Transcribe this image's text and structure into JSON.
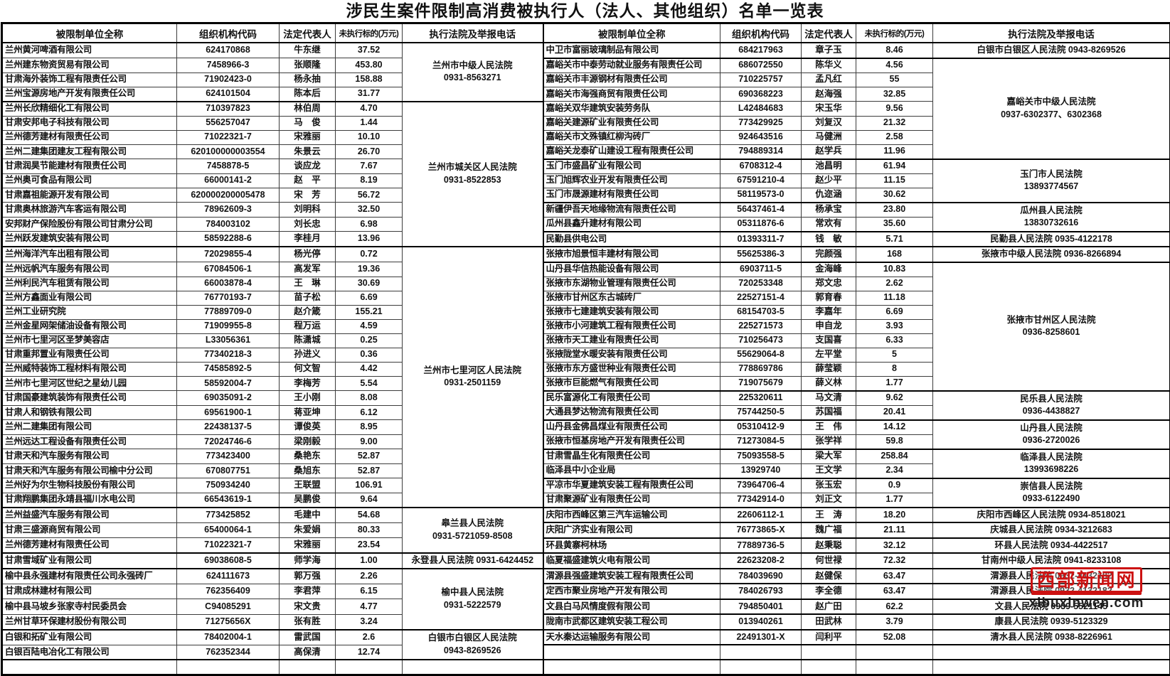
{
  "title": "涉民生案件限制高消费被执行人（法人、其他组织）名单一览表",
  "columns": [
    "被限制单位全称",
    "组织机构代码",
    "法定代表人",
    "未执行标的(万元)",
    "执行法院及举报电话"
  ],
  "watermark": {
    "name": "西部新闻网",
    "url": "xibuxinwen.com"
  },
  "left": {
    "rows": [
      [
        "兰州黄河啤酒有限公司",
        "624170868",
        "牛东继",
        "37.52"
      ],
      [
        "兰州建东物资贸易有限公司",
        "7458966-3",
        "张顺隆",
        "453.80"
      ],
      [
        "甘肃海外装饰工程有限责任公司",
        "71902423-0",
        "杨永抽",
        "158.88"
      ],
      [
        "兰州宝源房地产开发有限责任公司",
        "624101504",
        "陈本后",
        "31.77"
      ],
      [
        "兰州长欣精细化工有限公司",
        "710397823",
        "林伯周",
        "4.70"
      ],
      [
        "甘肃安邦电子科技有限公司",
        "556257047",
        "马　俊",
        "1.44"
      ],
      [
        "兰州德芳建材有限责任公司",
        "71022321-7",
        "宋雅丽",
        "10.10"
      ],
      [
        "兰州二建集团建友工程有限公司",
        "620100000003554",
        "朱景云",
        "26.70"
      ],
      [
        "甘肃润昊节能建材有限责任公司",
        "7458878-5",
        "谈应龙",
        "7.67"
      ],
      [
        "兰州奥可食品有限公司",
        "66000141-2",
        "赵　平",
        "8.19"
      ],
      [
        "甘肃嘉祖能源开发有限公司",
        "620000200005478",
        "宋　芳",
        "56.72"
      ],
      [
        "甘肃奥林旅游汽车客运有限公司",
        "78962609-3",
        "刘明科",
        "32.50"
      ],
      [
        "安邦财产保险股份有限公司甘肃分公司",
        "784003102",
        "刘长忠",
        "6.98"
      ],
      [
        "兰州跃发建筑安装有限公司",
        "58592288-6",
        "李桂月",
        "13.96"
      ],
      [
        "兰州海洋汽车出租有限公司",
        "72029855-4",
        "杨光停",
        "0.72"
      ],
      [
        "兰州远帆汽车服务有限公司",
        "67084506-1",
        "高发军",
        "19.36"
      ],
      [
        "兰州利民汽车租赁有限公司",
        "66003878-4",
        "王　琳",
        "30.69"
      ],
      [
        "兰州方鑫面业有限公司",
        "76770193-7",
        "苗子松",
        "6.69"
      ],
      [
        "兰州工业研究院",
        "77889709-0",
        "赵介箴",
        "155.21"
      ],
      [
        "兰州金星网架储油设备有限公司",
        "71909955-8",
        "程万运",
        "4.59"
      ],
      [
        "兰州市七里河区圣梦美容店",
        "L33056361",
        "陈潇城",
        "0.25"
      ],
      [
        "甘肃重邦置业有限责任公司",
        "77340218-3",
        "孙进义",
        "0.36"
      ],
      [
        "兰州威特装饰工程材料有限公司",
        "74585892-5",
        "何文智",
        "4.42"
      ],
      [
        "兰州市七里河区世纪之星幼儿园",
        "58592004-7",
        "李梅芳",
        "5.54"
      ],
      [
        "甘肃国豪建筑装饰有限责任公司",
        "69035091-2",
        "王小刚",
        "8.08"
      ],
      [
        "甘肃人和钢铁有限公司",
        "69561900-1",
        "蒋亚坤",
        "6.12"
      ],
      [
        "兰州二建集团有限公司",
        "22438137-5",
        "谭俊英",
        "8.95"
      ],
      [
        "兰州远达工程设备有限责任公司",
        "72024746-6",
        "梁刚毅",
        "9.00"
      ],
      [
        "甘肃天和汽车服务有限公司",
        "773423400",
        "桑艳东",
        "52.87"
      ],
      [
        "甘肃天和汽车服务有限公司榆中分公司",
        "670807751",
        "桑旭东",
        "52.87"
      ],
      [
        "兰州好为尔生物科技股份有限公司",
        "750934240",
        "王联盟",
        "106.91"
      ],
      [
        "甘肃翔鹏集团永靖县福川水电公司",
        "66543619-1",
        "吴鹏俊",
        "9.64"
      ],
      [
        "兰州益盛汽车服务有限公司",
        "773425852",
        "毛建中",
        "54.68"
      ],
      [
        "甘肃三盛源商贸有限公司",
        "65400064-1",
        "朱爱娟",
        "80.33"
      ],
      [
        "兰州德芳建材有限责任公司",
        "71022321-7",
        "宋雅丽",
        "23.54"
      ],
      [
        "甘肃雪域矿业有限公司",
        "69038608-5",
        "师学海",
        "1.00"
      ],
      [
        "榆中县永强建材有限责任公司永强砖厂",
        "624111673",
        "郭万强",
        "2.26"
      ],
      [
        "甘肃成林建材有限公司",
        "762356409",
        "李君萍",
        "6.15"
      ],
      [
        "榆中县马坡乡张家寺村民委员会",
        "C94085291",
        "宋文贵",
        "4.77"
      ],
      [
        "兰州甘草环保建材股份有限公司",
        "71275656X",
        "张有胜",
        "3.24"
      ],
      [
        "白银和拓矿业有限公司",
        "78402004-1",
        "雷武国",
        "2.6"
      ],
      [
        "白银百陆电冶化工有限公司",
        "762352344",
        "高保清",
        "12.74"
      ],
      [
        "",
        "",
        "",
        ""
      ]
    ],
    "courts": [
      {
        "start": 0,
        "span": 4,
        "lines": [
          "兰州市中级人民法院",
          "0931-8563271"
        ]
      },
      {
        "start": 4,
        "span": 10,
        "lines": [
          "兰州市城关区人民法院",
          "0931-8522853"
        ]
      },
      {
        "start": 14,
        "span": 18,
        "lines": [
          "兰州市七里河区人民法院",
          "0931-2501159"
        ]
      },
      {
        "start": 32,
        "span": 3,
        "lines": [
          "皋兰县人民法院",
          "0931-5721059-8508"
        ]
      },
      {
        "start": 35,
        "span": 1,
        "lines": [
          "永登县人民法院 0931-6424452"
        ]
      },
      {
        "start": 36,
        "span": 4,
        "lines": [
          "榆中县人民法院",
          "0931-5222579"
        ]
      },
      {
        "start": 40,
        "span": 2,
        "lines": [
          "白银市白银区人民法院",
          "0943-8269526"
        ]
      },
      {
        "start": 42,
        "span": 1,
        "lines": [
          ""
        ]
      }
    ]
  },
  "right": {
    "rows": [
      [
        "中卫市富丽玻璃制品有限公司",
        "684217963",
        "章子玉",
        "8.46"
      ],
      [
        "嘉峪关市中泰劳动就业服务有限责任公司",
        "686072550",
        "陈华义",
        "4.56"
      ],
      [
        "嘉峪关市丰源钢材有限责任公司",
        "710225757",
        "孟凡红",
        "55"
      ],
      [
        "嘉峪关市海强商贸有限责任公司",
        "690368223",
        "赵海强",
        "32.85"
      ],
      [
        "嘉峪关双华建筑安装劳务队",
        "L42484683",
        "宋玉华",
        "9.56"
      ],
      [
        "嘉峪关建源矿业有限责任公司",
        "773429925",
        "刘复汉",
        "21.32"
      ],
      [
        "嘉峪关市文殊镇红柳沟砖厂",
        "924643516",
        "马健洲",
        "2.58"
      ],
      [
        "嘉峪关龙泰矿山建设工程有限责任公司",
        "794889314",
        "赵学兵",
        "11.96"
      ],
      [
        "玉门市盛昌矿业有限公司",
        "6708312-4",
        "池昌明",
        "61.94"
      ],
      [
        "玉门旭辉农业开发有限责任公司",
        "67591210-4",
        "赵少平",
        "11.15"
      ],
      [
        "玉门市晟源建材有限责任公司",
        "58119573-0",
        "仇迩涵",
        "30.62"
      ],
      [
        "新疆伊吾天地缘物流有限责任公司",
        "56437461-4",
        "杨承宝",
        "23.80"
      ],
      [
        "瓜州县鑫升建材有限公司",
        "05311876-6",
        "常欢有",
        "35.60"
      ],
      [
        "民勤县供电公司",
        "01393311-7",
        "钱　敏",
        "5.71"
      ],
      [
        "张掖市旭景恒丰建材有限公司",
        "55625386-3",
        "完颜强",
        "168"
      ],
      [
        "山丹县华信热能设备有限公司",
        "6903711-5",
        "金海峰",
        "10.83"
      ],
      [
        "张掖市东湖物业管理有限责任公司",
        "720253348",
        "郑文忠",
        "2.62"
      ],
      [
        "张掖市甘州区东古城砖厂",
        "22527151-4",
        "郭育春",
        "11.18"
      ],
      [
        "张掖市七建建筑安装有限公司",
        "68154703-5",
        "李嘉年",
        "6.69"
      ],
      [
        "张掖市小河建筑工程有限责任公司",
        "225271573",
        "申自龙",
        "3.93"
      ],
      [
        "张掖市天工建业有限责任公司",
        "710256473",
        "支国喜",
        "6.33"
      ],
      [
        "张掖陇堂水暖安装有限责任公司",
        "55629064-8",
        "左平堂",
        "5"
      ],
      [
        "张掖市东方盛世种业有限责任公司",
        "778869786",
        "薛莹颖",
        "8"
      ],
      [
        "张掖市巨能燃气有限责任公司",
        "719075679",
        "薛义林",
        "1.77"
      ],
      [
        "民乐富源化工有限责任公司",
        "225320611",
        "马文清",
        "9.62"
      ],
      [
        "大通县梦达物流有限责任公司",
        "75744250-5",
        "苏国福",
        "20.41"
      ],
      [
        "山丹县金佛昌煤业有限责任公司",
        "05310412-9",
        "王　伟",
        "14.12"
      ],
      [
        "张掖市恒基房地产开发有限责任公司",
        "71273084-5",
        "张学祥",
        "59.8"
      ],
      [
        "甘肃雪晶生化有限责任公司",
        "75093558-5",
        "梁大军",
        "258.84"
      ],
      [
        "临泽县中小企业局",
        "13929740",
        "王文学",
        "2.34"
      ],
      [
        "平凉市华夏建筑安装工程有限责任公司",
        "73964706-4",
        "张玉宏",
        "0.9"
      ],
      [
        "甘肃聚源矿业有限责任公司",
        "77342914-0",
        "刘正文",
        "1.77"
      ],
      [
        "庆阳市西峰区第三汽车运输公司",
        "22606112-1",
        "王　涛",
        "18.20"
      ],
      [
        "庆阳广济实业有限公司",
        "76773865-X",
        "魏广福",
        "21.11"
      ],
      [
        "环县黄寨柯林场",
        "77889736-5",
        "赵秉聪",
        "32.12"
      ],
      [
        "临夏福盛建筑火电有限公司",
        "22623208-2",
        "何世禄",
        "72.32"
      ],
      [
        "渭源县强盛建筑安装工程有限责任公司",
        "784039690",
        "赵健保",
        "63.47"
      ],
      [
        "定西市聚业房地产开发有限公司",
        "784026793",
        "李全德",
        "63.47"
      ],
      [
        "文县白马风情度假有限公司",
        "794850401",
        "赵广田",
        "62.2"
      ],
      [
        "陇南市武都区建筑安装工程公司",
        "013940261",
        "田武林",
        "3.79"
      ],
      [
        "天水秦达运输服务有限公司",
        "22491301-X",
        "闫利平",
        "52.08"
      ],
      [
        "",
        "",
        "",
        ""
      ],
      [
        "",
        "",
        "",
        ""
      ]
    ],
    "courts": [
      {
        "start": 0,
        "span": 1,
        "lines": [
          "白银市白银区人民法院 0943-8269526"
        ]
      },
      {
        "start": 1,
        "span": 7,
        "lines": [
          "嘉峪关市中级人民法院",
          "0937-6302377、6302368"
        ]
      },
      {
        "start": 8,
        "span": 3,
        "lines": [
          "玉门市人民法院",
          "13893774567"
        ]
      },
      {
        "start": 11,
        "span": 2,
        "lines": [
          "瓜州县人民法院",
          "13830732616"
        ]
      },
      {
        "start": 13,
        "span": 1,
        "lines": [
          "民勤县人民法院 0935-4122178"
        ]
      },
      {
        "start": 14,
        "span": 1,
        "lines": [
          "张掖市中级人民法院 0936-8266894"
        ]
      },
      {
        "start": 15,
        "span": 9,
        "lines": [
          "张掖市甘州区人民法院",
          "0936-8258601"
        ]
      },
      {
        "start": 24,
        "span": 2,
        "lines": [
          "民乐县人民法院",
          "0936-4438827"
        ]
      },
      {
        "start": 26,
        "span": 2,
        "lines": [
          "山丹县人民法院",
          "0936-2720026"
        ]
      },
      {
        "start": 28,
        "span": 2,
        "lines": [
          "临泽县人民法院",
          "13993698226"
        ]
      },
      {
        "start": 30,
        "span": 2,
        "lines": [
          "崇信县人民法院",
          "0933-6122490"
        ]
      },
      {
        "start": 32,
        "span": 1,
        "lines": [
          "庆阳市西峰区人民法院 0934-8518021"
        ]
      },
      {
        "start": 33,
        "span": 1,
        "lines": [
          "庆城县人民法院 0934-3212683"
        ]
      },
      {
        "start": 34,
        "span": 1,
        "lines": [
          "环县人民法院 0934-4422517"
        ]
      },
      {
        "start": 35,
        "span": 1,
        "lines": [
          "甘南州中级人民法院 0941-8233108"
        ]
      },
      {
        "start": 36,
        "span": 1,
        "lines": [
          "渭源县人民法院 0932-4132182"
        ]
      },
      {
        "start": 37,
        "span": 1,
        "lines": [
          "渭源县人民法院 0932-4132182"
        ]
      },
      {
        "start": 38,
        "span": 1,
        "lines": [
          "文县人民法院 0939-5521145"
        ]
      },
      {
        "start": 39,
        "span": 1,
        "lines": [
          "康县人民法院 0939-5123329"
        ]
      },
      {
        "start": 40,
        "span": 1,
        "lines": [
          "清水县人民法院 0938-8226961"
        ]
      },
      {
        "start": 41,
        "span": 1,
        "lines": [
          ""
        ]
      },
      {
        "start": 42,
        "span": 1,
        "lines": [
          ""
        ]
      }
    ]
  }
}
